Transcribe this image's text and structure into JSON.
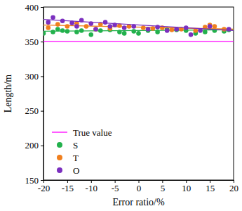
{
  "chart_data": {
    "type": "scatter",
    "x_label": "Error ratio/%",
    "y_label": "Length/m",
    "xlim": [
      -20,
      20
    ],
    "xticks": [
      -20,
      -15,
      -10,
      -5,
      0,
      5,
      10,
      15,
      20
    ],
    "ylim": [
      150,
      400
    ],
    "yticks": [
      150,
      200,
      250,
      300,
      350,
      400
    ],
    "grid": false,
    "legend": "lower-left",
    "series": [
      {
        "name": "True value",
        "type": "line",
        "line_style": "solid",
        "color": "#ff00ff",
        "x": [
          -20,
          20
        ],
        "values": [
          350,
          350
        ]
      },
      {
        "name": "S",
        "type": "scatter",
        "marker": "circle",
        "color": "#22b14c",
        "x": [
          -20,
          -18,
          -17,
          -16,
          -15,
          -13,
          -12,
          -10,
          -8,
          -6,
          -4,
          -3,
          -1,
          0,
          2,
          4,
          6,
          8,
          10,
          12,
          14,
          16,
          18,
          19
        ],
        "values": [
          362,
          364,
          368,
          366,
          365,
          364,
          366,
          360,
          366,
          367,
          364,
          362,
          365,
          362,
          366,
          364,
          368,
          367,
          366,
          362,
          364,
          366,
          365,
          367
        ],
        "trend_x": [
          -20,
          20
        ],
        "trend_values": [
          365,
          367
        ]
      },
      {
        "name": "T",
        "type": "scatter",
        "marker": "circle",
        "color": "#f07f1e",
        "x": [
          -19,
          -17,
          -15,
          -13,
          -11,
          -9,
          -8,
          -6,
          -4,
          -2,
          1,
          3,
          5,
          7,
          9,
          12,
          14,
          15,
          16,
          18
        ],
        "values": [
          370,
          375,
          372,
          376,
          372,
          368,
          375,
          369,
          373,
          372,
          370,
          369,
          370,
          367,
          368,
          366,
          371,
          374,
          372,
          368
        ],
        "trend_x": [
          -20,
          20
        ],
        "trend_values": [
          374,
          368
        ]
      },
      {
        "name": "O",
        "type": "scatter",
        "marker": "circle",
        "color": "#7b2fbf",
        "x": [
          -19,
          -18,
          -16,
          -14,
          -13,
          -12,
          -10,
          -9,
          -7,
          -6,
          -5,
          -3,
          -1,
          2,
          4,
          6,
          8,
          10,
          11,
          13,
          15,
          19
        ],
        "values": [
          378,
          385,
          380,
          377,
          372,
          381,
          376,
          368,
          378,
          372,
          374,
          370,
          372,
          368,
          371,
          366,
          368,
          370,
          360,
          366,
          372,
          368
        ],
        "trend_x": [
          -20,
          20
        ],
        "trend_values": [
          382,
          366
        ]
      }
    ]
  }
}
